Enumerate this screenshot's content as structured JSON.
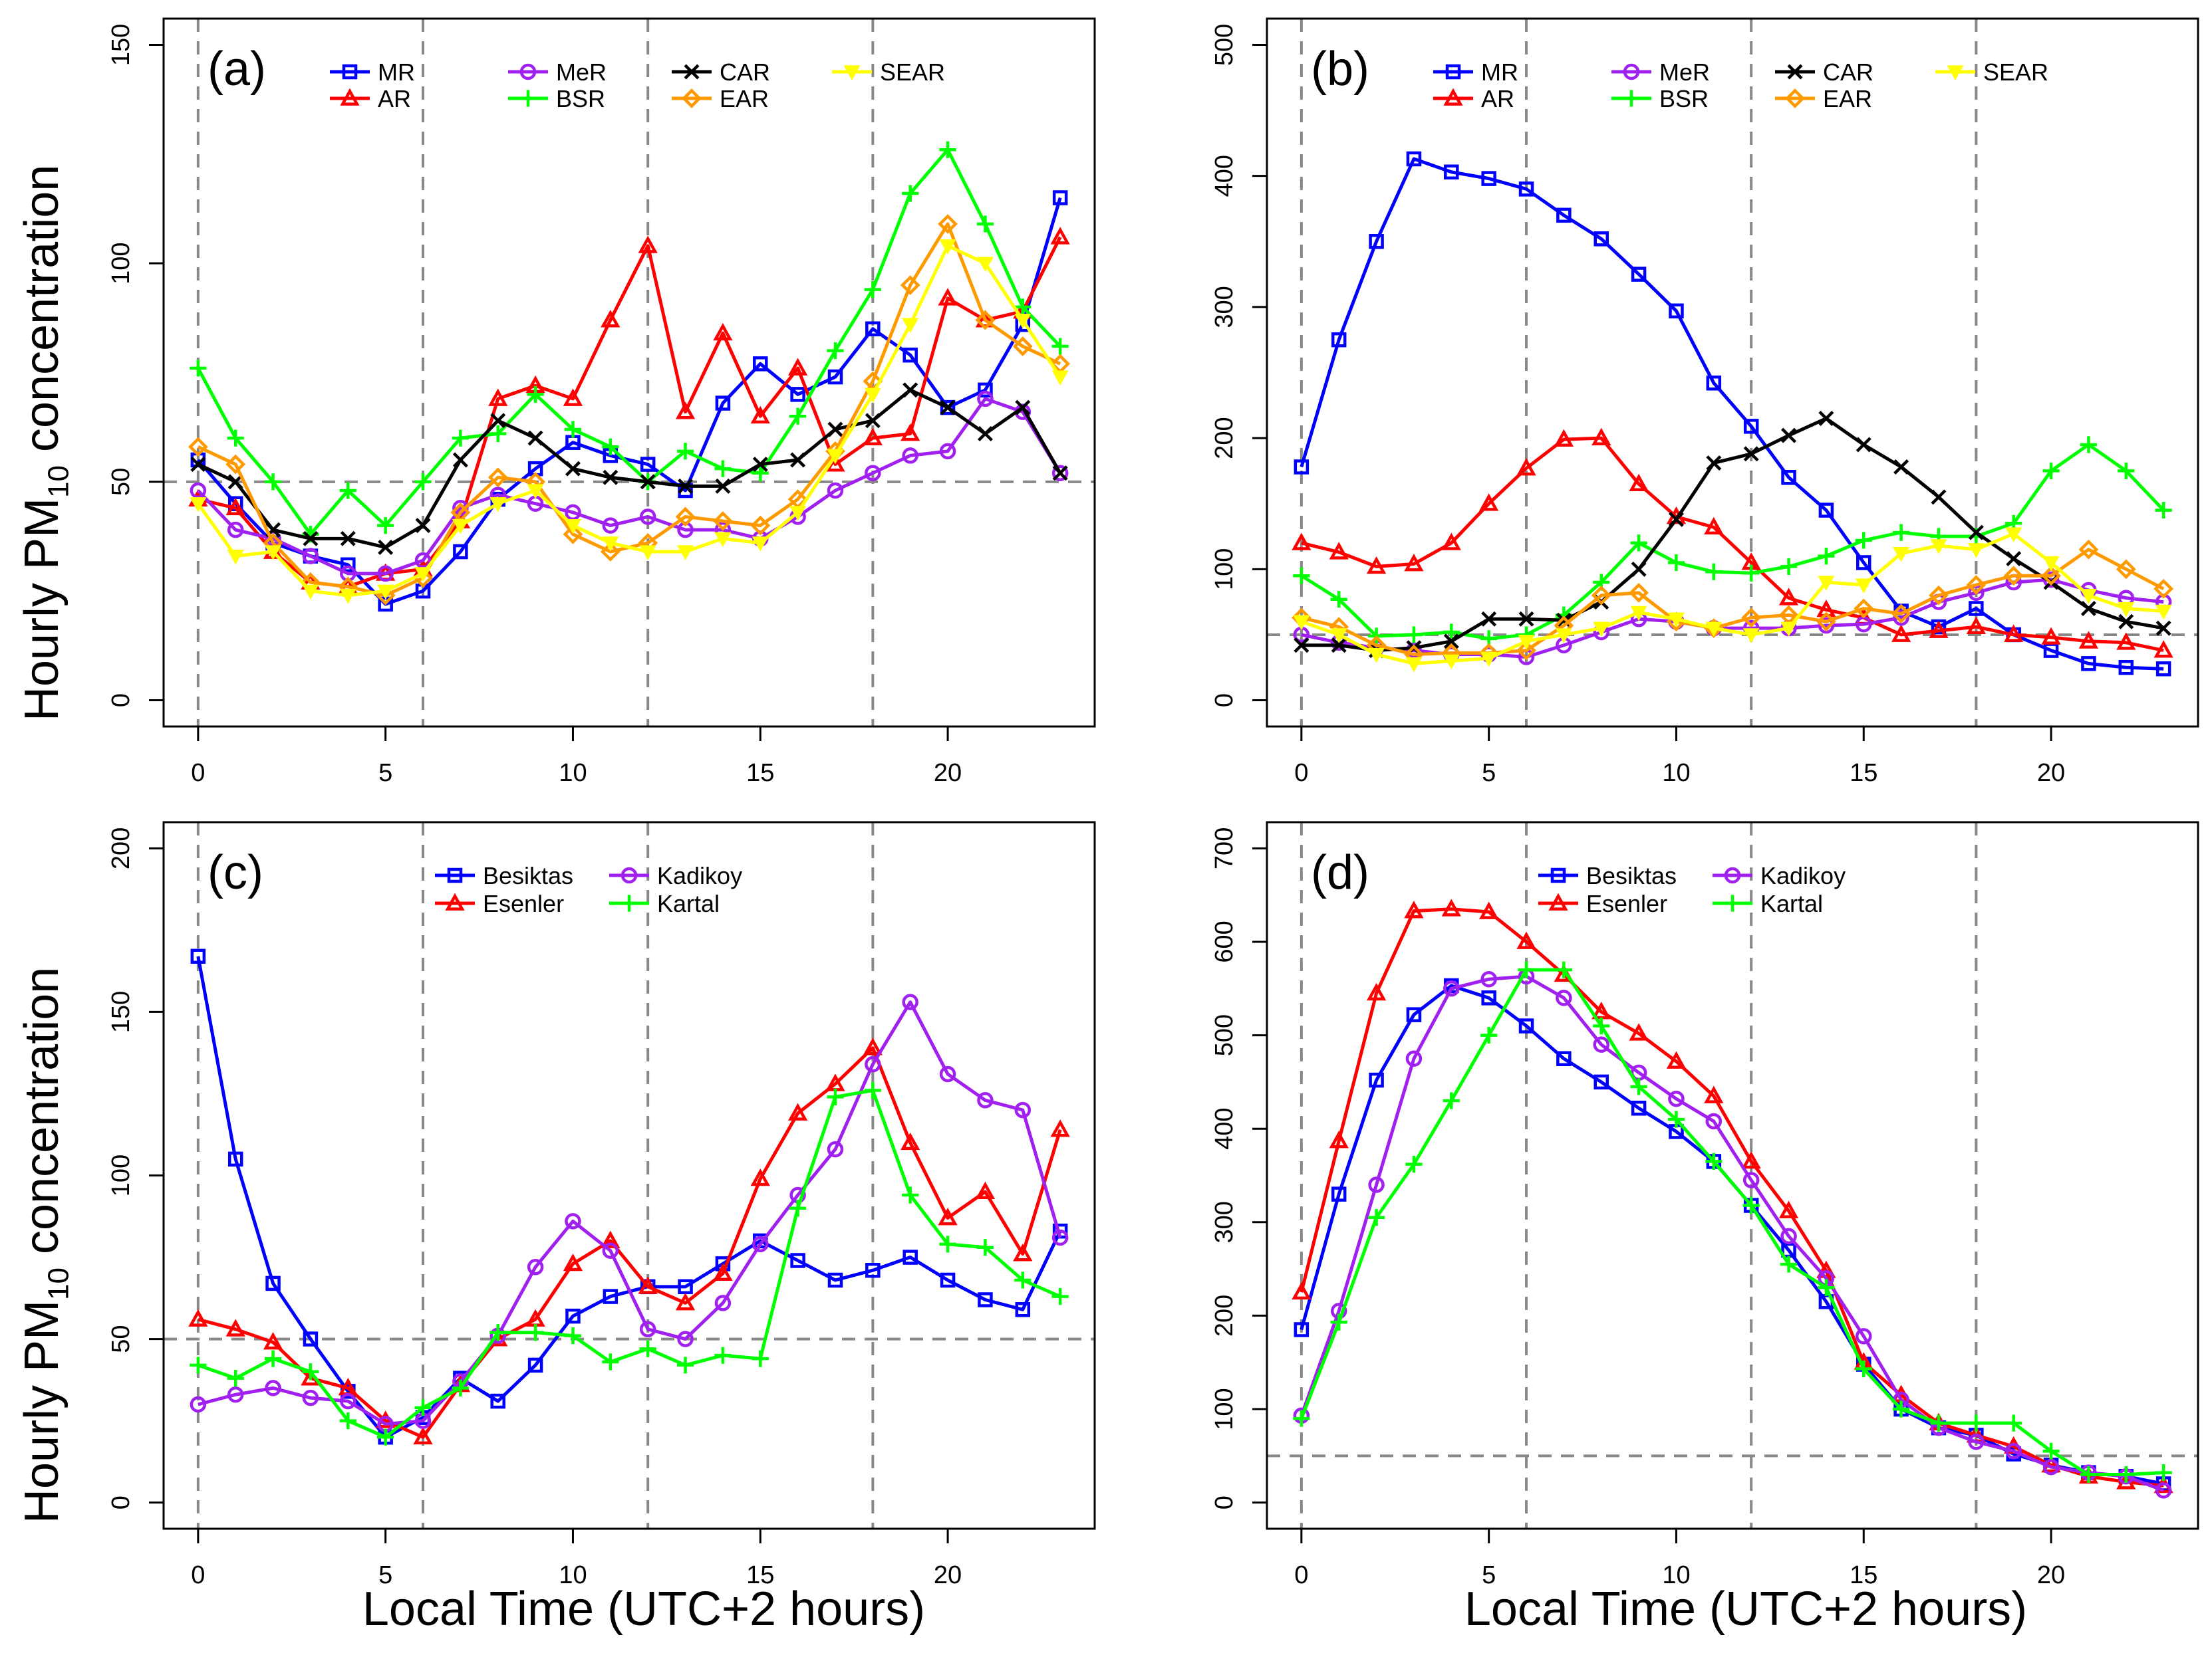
{
  "figure": {
    "y_axis_label_prefix": "Hourly PM",
    "y_axis_label_subscript": "10",
    "y_axis_label_suffix": " concentration",
    "x_axis_label": "Local Time (UTC+2 hours)"
  },
  "chart_data": [
    {
      "panel_label": "(a)",
      "type": "line",
      "xlim": [
        0,
        23
      ],
      "ylim": [
        0,
        150
      ],
      "x_ticks": [
        0,
        5,
        10,
        15,
        20
      ],
      "y_ticks": [
        0,
        50,
        100,
        150
      ],
      "vlines": [
        0,
        6,
        12,
        18
      ],
      "hline": 50,
      "legend_layout": "regions",
      "x": [
        0,
        1,
        2,
        3,
        4,
        5,
        6,
        7,
        8,
        9,
        10,
        11,
        12,
        13,
        14,
        15,
        16,
        17,
        18,
        19,
        20,
        21,
        22,
        23
      ],
      "series": [
        {
          "name": "MR",
          "color": "#0000ff",
          "marker": "square",
          "values": [
            55,
            45,
            36,
            33,
            31,
            22,
            25,
            34,
            46,
            53,
            59,
            56,
            54,
            48,
            68,
            77,
            70,
            74,
            85,
            79,
            67,
            71,
            86,
            115
          ]
        },
        {
          "name": "AR",
          "color": "#ff0000",
          "marker": "triangle",
          "values": [
            46,
            44,
            34,
            27,
            26,
            29,
            30,
            41,
            69,
            72,
            69,
            87,
            104,
            66,
            84,
            65,
            76,
            54,
            60,
            61,
            92,
            87,
            89,
            106
          ]
        },
        {
          "name": "MeR",
          "color": "#a020f0",
          "marker": "circle",
          "values": [
            48,
            39,
            37,
            33,
            29,
            29,
            32,
            44,
            47,
            45,
            43,
            40,
            42,
            39,
            39,
            37,
            42,
            48,
            52,
            56,
            57,
            69,
            66,
            52
          ]
        },
        {
          "name": "BSR",
          "color": "#00ff00",
          "marker": "plus",
          "values": [
            76,
            60,
            50,
            38,
            48,
            40,
            50,
            60,
            61,
            70,
            62,
            58,
            50,
            57,
            53,
            52,
            65,
            80,
            94,
            116,
            126,
            109,
            90,
            81
          ]
        },
        {
          "name": "CAR",
          "color": "#000000",
          "marker": "cross",
          "values": [
            54,
            50,
            39,
            37,
            37,
            35,
            40,
            55,
            64,
            60,
            53,
            51,
            50,
            49,
            49,
            54,
            55,
            62,
            64,
            71,
            67,
            61,
            67,
            52
          ]
        },
        {
          "name": "EAR",
          "color": "#ff9900",
          "marker": "diamond",
          "values": [
            58,
            54,
            36,
            27,
            26,
            24,
            28,
            43,
            51,
            50,
            38,
            34,
            36,
            42,
            41,
            40,
            46,
            57,
            73,
            95,
            109,
            87,
            81,
            77
          ]
        },
        {
          "name": "SEAR",
          "color": "#ffff00",
          "marker": "downtriangle",
          "values": [
            45,
            33,
            34,
            25,
            24,
            25,
            29,
            40,
            45,
            48,
            40,
            36,
            34,
            34,
            37,
            36,
            43,
            56,
            70,
            86,
            104,
            100,
            87,
            74
          ]
        }
      ]
    },
    {
      "panel_label": "(b)",
      "type": "line",
      "xlim": [
        0,
        23
      ],
      "ylim": [
        0,
        500
      ],
      "x_ticks": [
        0,
        5,
        10,
        15,
        20
      ],
      "y_ticks": [
        0,
        100,
        200,
        300,
        400,
        500
      ],
      "vlines": [
        0,
        6,
        12,
        18
      ],
      "hline": 50,
      "legend_layout": "regions",
      "x": [
        0,
        1,
        2,
        3,
        4,
        5,
        6,
        7,
        8,
        9,
        10,
        11,
        12,
        13,
        14,
        15,
        16,
        17,
        18,
        19,
        20,
        21,
        22,
        23
      ],
      "series": [
        {
          "name": "MR",
          "color": "#0000ff",
          "marker": "square",
          "values": [
            178,
            275,
            350,
            413,
            403,
            398,
            390,
            370,
            352,
            325,
            297,
            242,
            209,
            170,
            145,
            105,
            68,
            56,
            70,
            50,
            38,
            28,
            25,
            24
          ]
        },
        {
          "name": "AR",
          "color": "#ff0000",
          "marker": "triangle",
          "values": [
            120,
            113,
            102,
            104,
            120,
            150,
            177,
            199,
            200,
            165,
            140,
            132,
            105,
            78,
            69,
            63,
            50,
            53,
            56,
            50,
            48,
            45,
            44,
            38
          ]
        },
        {
          "name": "MeR",
          "color": "#a020f0",
          "marker": "circle",
          "values": [
            50,
            44,
            40,
            38,
            35,
            35,
            33,
            42,
            52,
            62,
            60,
            55,
            55,
            55,
            57,
            58,
            63,
            75,
            82,
            90,
            92,
            84,
            78,
            75
          ]
        },
        {
          "name": "BSR",
          "color": "#00ff00",
          "marker": "plus",
          "values": [
            95,
            77,
            49,
            50,
            52,
            47,
            50,
            65,
            90,
            120,
            105,
            98,
            97,
            102,
            110,
            122,
            128,
            125,
            125,
            135,
            175,
            195,
            175,
            145
          ]
        },
        {
          "name": "CAR",
          "color": "#000000",
          "marker": "cross",
          "values": [
            42,
            42,
            38,
            40,
            45,
            62,
            62,
            61,
            75,
            100,
            138,
            181,
            188,
            202,
            215,
            195,
            178,
            155,
            128,
            108,
            90,
            70,
            60,
            55
          ]
        },
        {
          "name": "EAR",
          "color": "#ff9900",
          "marker": "diamond",
          "values": [
            63,
            56,
            42,
            35,
            36,
            36,
            38,
            57,
            80,
            82,
            60,
            55,
            63,
            65,
            60,
            70,
            66,
            80,
            88,
            95,
            95,
            115,
            100,
            85
          ]
        },
        {
          "name": "SEAR",
          "color": "#ffff00",
          "marker": "downtriangle",
          "values": [
            60,
            50,
            35,
            28,
            30,
            32,
            45,
            50,
            55,
            67,
            62,
            55,
            50,
            55,
            90,
            88,
            112,
            118,
            115,
            127,
            105,
            80,
            70,
            68
          ]
        }
      ]
    },
    {
      "panel_label": "(c)",
      "type": "line",
      "xlim": [
        0,
        23
      ],
      "ylim": [
        0,
        200
      ],
      "x_ticks": [
        0,
        5,
        10,
        15,
        20
      ],
      "y_ticks": [
        0,
        50,
        100,
        150,
        200
      ],
      "vlines": [
        0,
        6,
        12,
        18
      ],
      "hline": 50,
      "legend_layout": "stations",
      "x": [
        0,
        1,
        2,
        3,
        4,
        5,
        6,
        7,
        8,
        9,
        10,
        11,
        12,
        13,
        14,
        15,
        16,
        17,
        18,
        19,
        20,
        21,
        22,
        23
      ],
      "series": [
        {
          "name": "Besiktas",
          "color": "#0000ff",
          "marker": "square",
          "values": [
            167,
            105,
            67,
            50,
            34,
            20,
            26,
            38,
            31,
            42,
            57,
            63,
            66,
            66,
            73,
            80,
            74,
            68,
            71,
            75,
            68,
            62,
            59,
            83
          ]
        },
        {
          "name": "Esenler",
          "color": "#ff0000",
          "marker": "triangle",
          "values": [
            56,
            53,
            49,
            38,
            35,
            25,
            20,
            36,
            50,
            56,
            73,
            80,
            66,
            61,
            70,
            99,
            119,
            128,
            139,
            110,
            87,
            95,
            76,
            114
          ]
        },
        {
          "name": "Kadikoy",
          "color": "#a020f0",
          "marker": "circle",
          "values": [
            30,
            33,
            35,
            32,
            31,
            24,
            25,
            37,
            51,
            72,
            86,
            77,
            53,
            50,
            61,
            79,
            94,
            108,
            134,
            153,
            131,
            123,
            120,
            81
          ]
        },
        {
          "name": "Kartal",
          "color": "#00ff00",
          "marker": "plus",
          "values": [
            42,
            38,
            44,
            40,
            25,
            20,
            29,
            35,
            52,
            52,
            51,
            43,
            47,
            42,
            45,
            44,
            90,
            124,
            126,
            94,
            79,
            78,
            68,
            63
          ]
        }
      ]
    },
    {
      "panel_label": "(d)",
      "type": "line",
      "xlim": [
        0,
        23
      ],
      "ylim": [
        0,
        700
      ],
      "x_ticks": [
        0,
        5,
        10,
        15,
        20
      ],
      "y_ticks": [
        0,
        100,
        200,
        300,
        400,
        500,
        600,
        700
      ],
      "vlines": [
        0,
        6,
        12,
        18
      ],
      "hline": 50,
      "legend_layout": "stations",
      "x": [
        0,
        1,
        2,
        3,
        4,
        5,
        6,
        7,
        8,
        9,
        10,
        11,
        12,
        13,
        14,
        15,
        16,
        17,
        18,
        19,
        20,
        21,
        22,
        23
      ],
      "series": [
        {
          "name": "Besiktas",
          "color": "#0000ff",
          "marker": "square",
          "values": [
            185,
            330,
            452,
            522,
            553,
            540,
            510,
            475,
            450,
            422,
            397,
            365,
            318,
            270,
            215,
            148,
            100,
            80,
            72,
            52,
            40,
            32,
            28,
            20
          ]
        },
        {
          "name": "Esenler",
          "color": "#ff0000",
          "marker": "triangle",
          "values": [
            225,
            387,
            545,
            633,
            635,
            632,
            600,
            565,
            525,
            502,
            472,
            435,
            365,
            312,
            248,
            150,
            115,
            85,
            72,
            60,
            40,
            28,
            22,
            18
          ]
        },
        {
          "name": "Kadikoy",
          "color": "#a020f0",
          "marker": "circle",
          "values": [
            93,
            205,
            340,
            475,
            550,
            560,
            563,
            540,
            490,
            460,
            432,
            408,
            345,
            285,
            240,
            178,
            110,
            80,
            65,
            55,
            38,
            32,
            28,
            13
          ]
        },
        {
          "name": "Kartal",
          "color": "#00ff00",
          "marker": "plus",
          "values": [
            90,
            193,
            305,
            362,
            430,
            500,
            570,
            570,
            510,
            445,
            410,
            365,
            318,
            255,
            230,
            143,
            100,
            85,
            85,
            85,
            55,
            30,
            30,
            32
          ]
        }
      ]
    }
  ]
}
